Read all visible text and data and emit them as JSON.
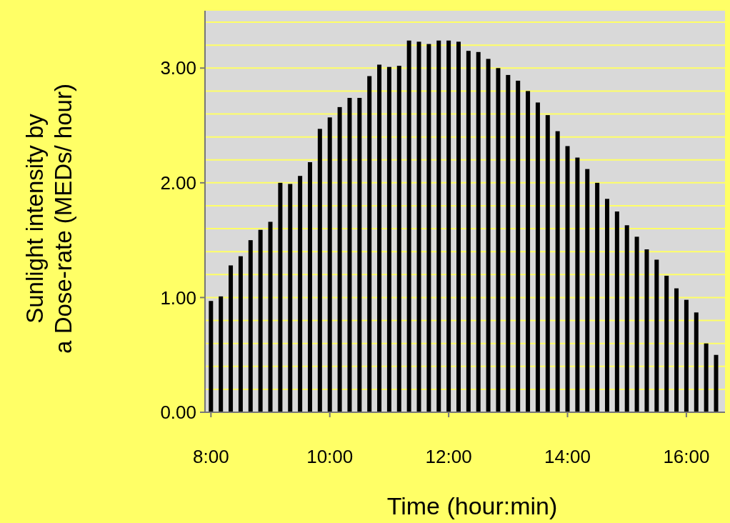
{
  "chart_data": {
    "type": "bar",
    "xlabel": "Time (hour:min)",
    "ylabel": "Sunlight intensity by\na Dose-rate (MEDs/ hour)",
    "x": [
      8,
      8.1667,
      8.3333,
      8.5,
      8.6667,
      8.8333,
      9,
      9.1667,
      9.3333,
      9.5,
      9.6667,
      9.8333,
      10,
      10.1667,
      10.3333,
      10.5,
      10.6667,
      10.8333,
      11,
      11.1667,
      11.3333,
      11.5,
      11.6667,
      11.8333,
      12,
      12.1667,
      12.3333,
      12.5,
      12.6667,
      12.8333,
      13,
      13.1667,
      13.3333,
      13.5,
      13.6667,
      13.8333,
      14,
      14.1667,
      14.3333,
      14.5,
      14.6667,
      14.8333,
      15,
      15.1667,
      15.3333,
      15.5,
      15.6667,
      15.8333,
      16,
      16.1667,
      16.3333,
      16.5
    ],
    "values": [
      0.97,
      1.01,
      1.28,
      1.36,
      1.5,
      1.59,
      1.66,
      2.0,
      1.99,
      2.06,
      2.18,
      2.47,
      2.57,
      2.66,
      2.74,
      2.74,
      2.93,
      3.03,
      3.01,
      3.02,
      3.24,
      3.23,
      3.21,
      3.24,
      3.24,
      3.23,
      3.15,
      3.14,
      3.08,
      3.0,
      2.94,
      2.89,
      2.8,
      2.7,
      2.59,
      2.45,
      2.32,
      2.22,
      2.12,
      2.0,
      1.86,
      1.75,
      1.63,
      1.53,
      1.42,
      1.33,
      1.19,
      1.08,
      0.98,
      0.87,
      0.6,
      0.5
    ],
    "color": "#000000",
    "xlim": [
      7.9,
      16.65
    ],
    "xticks": [
      {
        "value": 8,
        "label": "8:00"
      },
      {
        "value": 10,
        "label": "10:00"
      },
      {
        "value": 12,
        "label": "12:00"
      },
      {
        "value": 14,
        "label": "14:00"
      },
      {
        "value": 16,
        "label": "16:00"
      }
    ],
    "ylim": [
      0,
      3.5
    ],
    "yticks": [
      {
        "value": 0,
        "label": "0.00"
      },
      {
        "value": 0.2,
        "label": null
      },
      {
        "value": 0.4,
        "label": null
      },
      {
        "value": 0.6,
        "label": null
      },
      {
        "value": 0.8,
        "label": null
      },
      {
        "value": 1,
        "label": "1.00"
      },
      {
        "value": 1.2,
        "label": null
      },
      {
        "value": 1.4,
        "label": null
      },
      {
        "value": 1.6,
        "label": null
      },
      {
        "value": 1.8,
        "label": null
      },
      {
        "value": 2,
        "label": "2.00"
      },
      {
        "value": 2.2,
        "label": null
      },
      {
        "value": 2.4,
        "label": null
      },
      {
        "value": 2.6,
        "label": null
      },
      {
        "value": 2.8,
        "label": null
      },
      {
        "value": 3,
        "label": "3.00"
      },
      {
        "value": 3.2,
        "label": null
      },
      {
        "value": 3.4,
        "label": null
      }
    ],
    "grid": "y"
  }
}
